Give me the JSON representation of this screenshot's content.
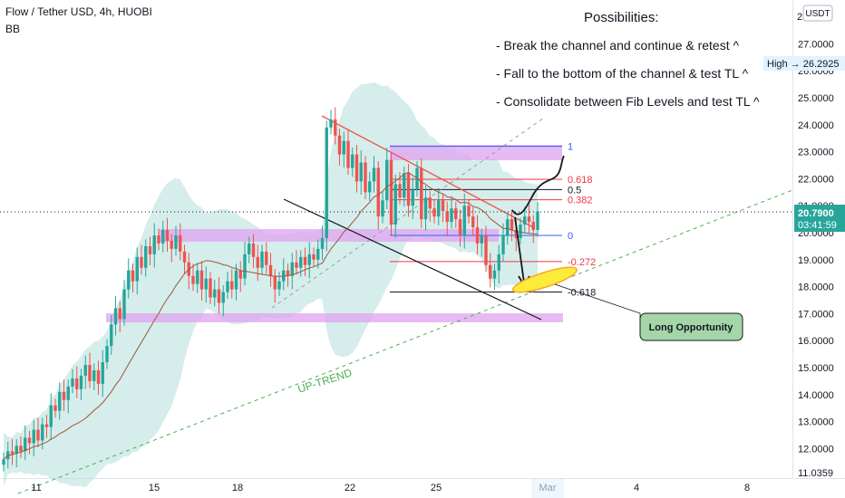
{
  "header": {
    "symbol_line": "Flow / Tether USD, 4h, HUOBI",
    "indicator": "BB"
  },
  "annotations": {
    "title": "Possibilities:",
    "items": [
      "- Break the channel and continue & retest ^",
      "- Fall to the bottom of the channel & test TL ^",
      "- Consolidate between Fib Levels and test TL ^"
    ],
    "callout": "Long Opportunity",
    "uptrend_label": "UP-TREND"
  },
  "price_axis": {
    "currency": "USDT",
    "high_label": "High",
    "high_value": "26.2925",
    "current_price": "20.7900",
    "countdown": "03:41:59",
    "top_cut": "2",
    "bottom_cut": "11.0359"
  },
  "fib_levels": [
    {
      "ratio": "1",
      "price": 23.2,
      "color": "#2962ff"
    },
    {
      "ratio": "0.618",
      "price": 21.98,
      "color": "#f23645"
    },
    {
      "ratio": "0.5",
      "price": 21.6,
      "color": "#131722"
    },
    {
      "ratio": "0.382",
      "price": 21.22,
      "color": "#f23645"
    },
    {
      "ratio": "0",
      "price": 19.9,
      "color": "#2962ff"
    },
    {
      "ratio": "-0.272",
      "price": 18.93,
      "color": "#f23645"
    },
    {
      "ratio": "-0.618",
      "price": 17.8,
      "color": "#131722"
    }
  ],
  "colors": {
    "up": "#26a69a",
    "down": "#ef5350",
    "bb_fill": "#b2dfdb",
    "basis": "#a1543b",
    "zone": "#e0a3f0",
    "trendline_up": "#4caf50",
    "callout_bg": "#a5d6a7"
  },
  "chart_data": {
    "type": "candlestick",
    "title": "Flow / Tether USD, 4h, HUOBI",
    "ylim": [
      11.0,
      28.0
    ],
    "y_ticks": [
      "12.0000",
      "13.0000",
      "14.0000",
      "15.0000",
      "16.0000",
      "17.0000",
      "18.0000",
      "19.0000",
      "20.0000",
      "21.0000",
      "22.0000",
      "23.0000",
      "24.0000",
      "25.0000",
      "26.0000",
      "27.0000"
    ],
    "x_ticks": [
      "11",
      "15",
      "18",
      "22",
      "25",
      "Mar",
      "4",
      "8"
    ],
    "last_price": 20.79,
    "high": 26.2925,
    "close_series": [
      11.6,
      11.9,
      11.8,
      12.1,
      11.9,
      12.4,
      12.2,
      12.7,
      12.3,
      12.9,
      12.8,
      13.6,
      13.4,
      14.1,
      13.8,
      14.3,
      14.6,
      14.2,
      14.7,
      15.1,
      14.5,
      14.9,
      14.4,
      15.2,
      15.8,
      16.6,
      17.2,
      16.8,
      17.9,
      18.6,
      18.2,
      19.1,
      18.7,
      19.5,
      19.2,
      19.9,
      19.6,
      20.1,
      19.7,
      19.4,
      19.9,
      19.3,
      18.9,
      18.4,
      18.1,
      18.6,
      17.9,
      18.3,
      17.6,
      17.9,
      17.4,
      17.8,
      18.2,
      17.9,
      18.6,
      18.3,
      19.2,
      19.6,
      19.1,
      18.7,
      19.3,
      18.8,
      18.4,
      17.9,
      18.2,
      18.6,
      18.4,
      18.9,
      18.7,
      19.1,
      18.8,
      19.2,
      19.0,
      19.4,
      19.8,
      23.9,
      24.2,
      23.6,
      22.9,
      23.4,
      22.4,
      22.9,
      21.9,
      22.6,
      21.5,
      21.9,
      22.4,
      20.6,
      21.2,
      22.7,
      20.3,
      21.8,
      21.3,
      22.2,
      21.0,
      21.6,
      22.4,
      20.5,
      21.3,
      20.9,
      20.6,
      21.2,
      20.8,
      20.4,
      20.9,
      20.5,
      19.9,
      21.0,
      20.6,
      20.2,
      19.6,
      19.9,
      18.8,
      18.3,
      18.6,
      19.2,
      19.9,
      20.5,
      20.1,
      19.8,
      20.3,
      20.6,
      20.4,
      20.1,
      20.79
    ]
  }
}
